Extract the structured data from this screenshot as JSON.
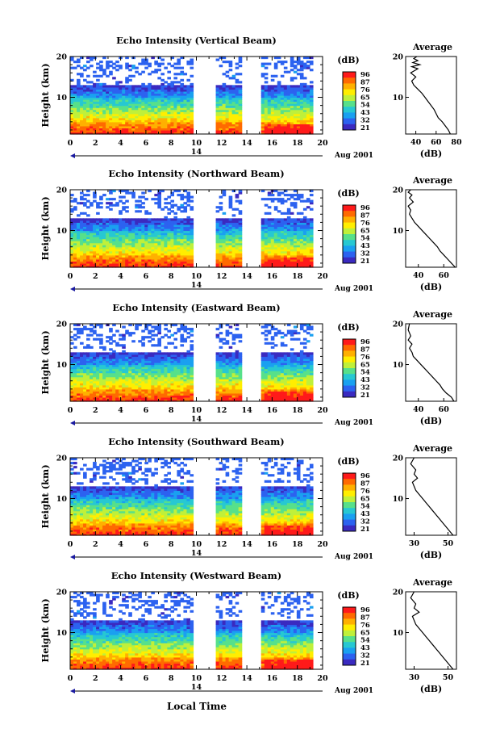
{
  "figure": {
    "date_label": "Aug 2001",
    "x_axis_label": "Local Time",
    "colorbar_unit": "(dB)",
    "colorbar_ticks": [
      "96",
      "87",
      "76",
      "65",
      "54",
      "43",
      "32",
      "21"
    ],
    "colorbar_colors": [
      "#ff1a1a",
      "#ff6a00",
      "#ffb000",
      "#ffee00",
      "#bff03a",
      "#57e08a",
      "#27c8d2",
      "#1aa0f0",
      "#2c62f0",
      "#3a2ac0"
    ]
  },
  "chart_data": [
    {
      "type": "heatmap",
      "title": "Echo Intensity (Vertical Beam)",
      "ylabel": "Height (km)",
      "xlabel": "Local Time",
      "x_ticks": [
        "0",
        "2",
        "4",
        "6",
        "8",
        "10",
        "12",
        "14",
        "16",
        "18",
        "20"
      ],
      "day_label": "14",
      "y_ticks": [
        "20",
        "10"
      ],
      "xlim": [
        0,
        20
      ],
      "ylim": [
        1,
        20
      ],
      "data_gaps_hours": [
        [
          9.8,
          11.5
        ],
        [
          13.7,
          15.1
        ]
      ],
      "profile": {
        "title": "Average",
        "xlabel": "(dB)",
        "x_ticks": [
          "40",
          "60",
          "80"
        ],
        "xlim": [
          30,
          80
        ],
        "y_ticks": [
          "20",
          "10"
        ],
        "ylim": [
          1,
          20
        ],
        "x": [
          74,
          72,
          69,
          66,
          62,
          60,
          58,
          55,
          52,
          49,
          46,
          42,
          38,
          36,
          40,
          35,
          42,
          36,
          44,
          37,
          42,
          38,
          41
        ],
        "y": [
          1,
          2,
          3,
          4,
          5,
          6,
          7,
          8,
          9,
          10,
          11,
          12,
          13,
          14,
          15,
          16,
          17,
          17.5,
          18,
          18.5,
          19,
          19.5,
          20
        ]
      }
    },
    {
      "type": "heatmap",
      "title": "Echo Intensity (Northward Beam)",
      "ylabel": "Height (km)",
      "xlabel": "Local Time",
      "x_ticks": [
        "0",
        "2",
        "4",
        "6",
        "8",
        "10",
        "12",
        "14",
        "16",
        "18",
        "20"
      ],
      "day_label": "14",
      "y_ticks": [
        "20",
        "10"
      ],
      "xlim": [
        0,
        20
      ],
      "ylim": [
        1,
        20
      ],
      "data_gaps_hours": [
        [
          9.8,
          11.5
        ],
        [
          13.7,
          15.1
        ]
      ],
      "profile": {
        "title": "Average",
        "xlabel": "(dB)",
        "x_ticks": [
          "40",
          "60"
        ],
        "xlim": [
          30,
          70
        ],
        "y_ticks": [
          "20",
          "10"
        ],
        "ylim": [
          1,
          20
        ],
        "x": [
          69,
          66,
          63,
          60,
          57,
          55,
          52,
          49,
          46,
          43,
          40,
          37,
          35,
          33,
          34,
          32,
          36,
          33,
          35,
          32,
          34
        ],
        "y": [
          1,
          2,
          3,
          4,
          5,
          6,
          7,
          8,
          9,
          10,
          11,
          12,
          13,
          14,
          15,
          16,
          17,
          18,
          18.7,
          19.4,
          20
        ]
      }
    },
    {
      "type": "heatmap",
      "title": "Echo Intensity (Eastward Beam)",
      "ylabel": "Height (km)",
      "xlabel": "Local Time",
      "x_ticks": [
        "0",
        "2",
        "4",
        "6",
        "8",
        "10",
        "12",
        "14",
        "16",
        "18",
        "20"
      ],
      "day_label": "14",
      "y_ticks": [
        "20",
        "10"
      ],
      "xlim": [
        0,
        20
      ],
      "ylim": [
        1,
        20
      ],
      "data_gaps_hours": [
        [
          9.8,
          11.5
        ],
        [
          13.7,
          15.1
        ]
      ],
      "profile": {
        "title": "Average",
        "xlabel": "(dB)",
        "x_ticks": [
          "40",
          "60"
        ],
        "xlim": [
          30,
          70
        ],
        "y_ticks": [
          "20",
          "10"
        ],
        "ylim": [
          1,
          20
        ],
        "x": [
          68,
          66,
          62,
          59,
          57,
          54,
          51,
          48,
          45,
          42,
          39,
          36,
          35,
          33,
          35,
          32,
          34,
          32,
          33
        ],
        "y": [
          1,
          2,
          3,
          4,
          5,
          6,
          7,
          8,
          9,
          10,
          11,
          12,
          13,
          14,
          15,
          16,
          17,
          18.5,
          20
        ]
      }
    },
    {
      "type": "heatmap",
      "title": "Echo Intensity (Southward Beam)",
      "ylabel": "Height (km)",
      "xlabel": "Local Time",
      "x_ticks": [
        "0",
        "2",
        "4",
        "6",
        "8",
        "10",
        "12",
        "14",
        "16",
        "18",
        "20"
      ],
      "day_label": "14",
      "y_ticks": [
        "20",
        "10"
      ],
      "xlim": [
        0,
        20
      ],
      "ylim": [
        1,
        20
      ],
      "data_gaps_hours": [
        [
          9.8,
          11.5
        ],
        [
          13.7,
          15.1
        ]
      ],
      "profile": {
        "title": "Average",
        "xlabel": "(dB)",
        "x_ticks": [
          "30",
          "50"
        ],
        "xlim": [
          25,
          55
        ],
        "y_ticks": [
          "20",
          "10"
        ],
        "ylim": [
          1,
          20
        ],
        "x": [
          53,
          51,
          49,
          47,
          45,
          43,
          41,
          39,
          37,
          35,
          33,
          31,
          30,
          29,
          32,
          30,
          31,
          28,
          30
        ],
        "y": [
          1,
          2,
          3,
          4,
          5,
          6,
          7,
          8,
          9,
          10,
          11,
          12,
          13,
          14,
          15,
          16,
          17,
          18.5,
          20
        ]
      }
    },
    {
      "type": "heatmap",
      "title": "Echo Intensity (Westward Beam)",
      "ylabel": "Height (km)",
      "xlabel": "Local Time",
      "x_ticks": [
        "0",
        "2",
        "4",
        "6",
        "8",
        "10",
        "12",
        "14",
        "16",
        "18",
        "20"
      ],
      "day_label": "14",
      "y_ticks": [
        "20",
        "10"
      ],
      "xlim": [
        0,
        20
      ],
      "ylim": [
        1,
        20
      ],
      "data_gaps_hours": [
        [
          9.8,
          11.5
        ],
        [
          13.7,
          15.1
        ]
      ],
      "profile": {
        "title": "Average",
        "xlabel": "(dB)",
        "x_ticks": [
          "30",
          "50"
        ],
        "xlim": [
          25,
          55
        ],
        "y_ticks": [
          "20",
          "10"
        ],
        "ylim": [
          1,
          20
        ],
        "x": [
          53,
          51,
          49,
          47,
          45,
          43,
          41,
          39,
          37,
          35,
          33,
          31,
          30,
          29,
          33,
          30,
          31,
          28,
          30
        ],
        "y": [
          1,
          2,
          3,
          4,
          5,
          6,
          7,
          8,
          9,
          10,
          11,
          12,
          13,
          14,
          15,
          16,
          17,
          18.5,
          20
        ]
      }
    }
  ]
}
